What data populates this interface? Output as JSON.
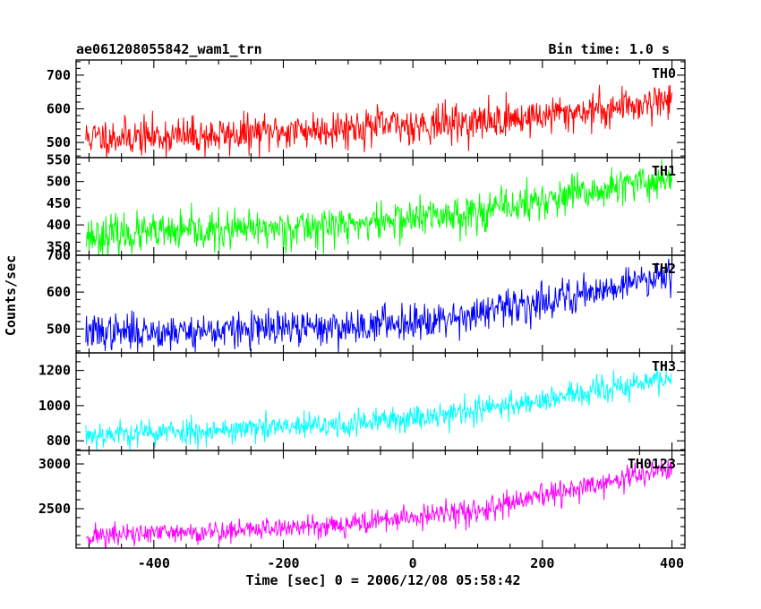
{
  "header": {
    "obs_id": "ae061208055842_wam1_trn",
    "bin_time": "Bin time: 1.0 s"
  },
  "axes": {
    "xlabel": "Time [sec] 0 = 2006/12/08 05:58:42",
    "ylabel": "Counts/sec"
  },
  "chart_data": {
    "type": "line",
    "title": "ae061208055842_wam1_trn",
    "subtitle": "Bin time: 1.0 s",
    "xlabel": "Time [sec] 0 = 2006/12/08 05:58:42",
    "ylabel": "Counts/sec",
    "xlim": [
      -520,
      420
    ],
    "x_ticks": [
      -400,
      -200,
      0,
      200,
      400
    ],
    "x_range_data": [
      -505,
      400
    ],
    "bin_time_s": 1.0,
    "grid": false,
    "legend": "none",
    "panels": [
      {
        "name": "TH0",
        "color": "#ff0000",
        "ylim": [
          455,
          745
        ],
        "yticks": [
          500,
          600,
          700
        ],
        "trend_points": [
          [
            -505,
            515
          ],
          [
            -300,
            520
          ],
          [
            -100,
            545
          ],
          [
            100,
            560
          ],
          [
            300,
            600
          ],
          [
            400,
            630
          ]
        ],
        "noise_sigma": 28,
        "seed": 11
      },
      {
        "name": "TH1",
        "color": "#00ff00",
        "ylim": [
          330,
          555
        ],
        "yticks": [
          350,
          400,
          450,
          500,
          550
        ],
        "trend_points": [
          [
            -505,
            375
          ],
          [
            -300,
            385
          ],
          [
            -100,
            400
          ],
          [
            100,
            430
          ],
          [
            300,
            480
          ],
          [
            400,
            510
          ]
        ],
        "noise_sigma": 22,
        "seed": 23
      },
      {
        "name": "TH2",
        "color": "#0000ff",
        "ylim": [
          435,
          700
        ],
        "yticks": [
          500,
          600,
          700
        ],
        "trend_points": [
          [
            -505,
            490
          ],
          [
            -300,
            495
          ],
          [
            -100,
            505
          ],
          [
            100,
            540
          ],
          [
            300,
            610
          ],
          [
            400,
            655
          ]
        ],
        "noise_sigma": 24,
        "seed": 37
      },
      {
        "name": "TH3",
        "color": "#00ffff",
        "ylim": [
          745,
          1300
        ],
        "yticks": [
          800,
          1000,
          1200
        ],
        "trend_points": [
          [
            -505,
            835
          ],
          [
            -300,
            860
          ],
          [
            -100,
            890
          ],
          [
            100,
            975
          ],
          [
            300,
            1090
          ],
          [
            400,
            1160
          ]
        ],
        "noise_sigma": 38,
        "seed": 53
      },
      {
        "name": "TH0123",
        "color": "#ff00ff",
        "ylim": [
          2060,
          3150
        ],
        "yticks": [
          2500,
          3000
        ],
        "trend_points": [
          [
            -505,
            2195
          ],
          [
            -300,
            2245
          ],
          [
            -100,
            2330
          ],
          [
            100,
            2475
          ],
          [
            300,
            2790
          ],
          [
            400,
            2960
          ]
        ],
        "noise_sigma": 65,
        "seed": 71
      }
    ]
  }
}
